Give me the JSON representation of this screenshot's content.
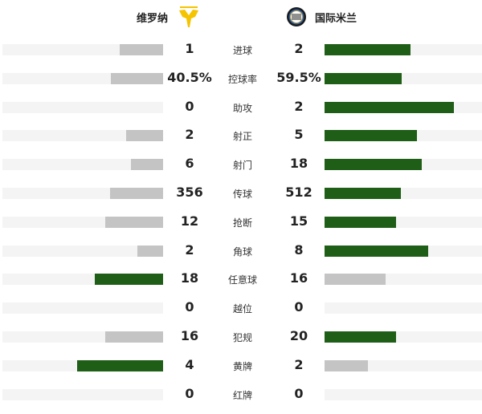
{
  "home": {
    "name": "维罗纳",
    "logo": "hellas-verona-logo"
  },
  "away": {
    "name": "国际米兰",
    "logo": "inter-milan-logo"
  },
  "colors": {
    "leader": "#1f5e17",
    "trailer": "#c4c4c4",
    "track": "#f4f4f4"
  },
  "stats": [
    {
      "label": "进球",
      "home": "1",
      "away": "2"
    },
    {
      "label": "控球率",
      "home": "40.5%",
      "away": "59.5%"
    },
    {
      "label": "助攻",
      "home": "0",
      "away": "2"
    },
    {
      "label": "射正",
      "home": "2",
      "away": "5"
    },
    {
      "label": "射门",
      "home": "6",
      "away": "18"
    },
    {
      "label": "传球",
      "home": "356",
      "away": "512"
    },
    {
      "label": "抢断",
      "home": "12",
      "away": "15"
    },
    {
      "label": "角球",
      "home": "2",
      "away": "8"
    },
    {
      "label": "任意球",
      "home": "18",
      "away": "16"
    },
    {
      "label": "越位",
      "home": "0",
      "away": "0"
    },
    {
      "label": "犯规",
      "home": "16",
      "away": "20"
    },
    {
      "label": "黄牌",
      "home": "4",
      "away": "2"
    },
    {
      "label": "红牌",
      "home": "0",
      "away": "0"
    }
  ]
}
